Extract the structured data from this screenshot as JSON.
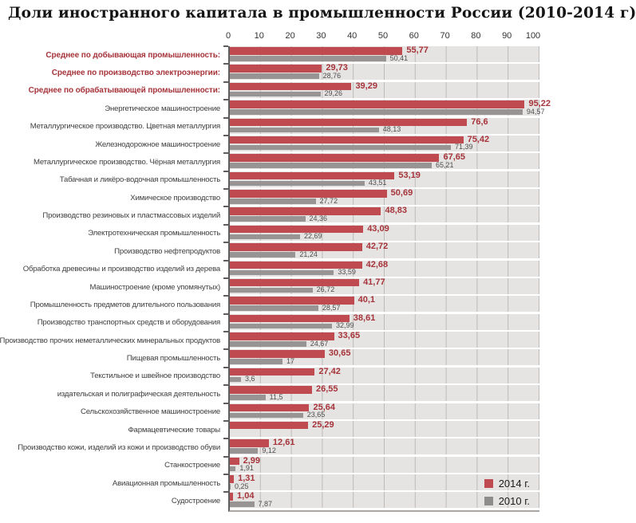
{
  "title": "Доли иностранного капитала в промышленности России (2010-2014 г)",
  "colors": {
    "bar_2014": "#bf4b51",
    "bar_2010": "#989494",
    "value_2014_text": "#a6343a",
    "value_2010_text": "#4e4e4e",
    "summary_label_text": "#a6343a",
    "category_label_text": "#3f3e3e",
    "row_background": "#e6e4e3",
    "gridline": "#bdbab8",
    "axis_line": "#5f5d5d",
    "legend_square_2014": "#bf4b51",
    "legend_square_2010": "#8f8c8c"
  },
  "chart_data": {
    "type": "bar",
    "orientation": "horizontal",
    "title": "Доли иностранного капитала в промышленности России (2010-2014 г)",
    "xlim": [
      0,
      100
    ],
    "x_ticks": [
      "0",
      "10",
      "20",
      "30",
      "40",
      "50",
      "60",
      "70",
      "80",
      "90",
      "100"
    ],
    "grid": true,
    "legend_position": "bottom-right",
    "value_decimal_separator": ",",
    "bold_summary_rows": [
      0,
      1,
      2
    ],
    "categories": [
      "Среднее по добывающая  промышленность:",
      "Среднее по производство электроэнергии:",
      "Среднее по обрабатывающей  промышленности:",
      "Энергетическое машиностроение",
      "Металлургическое производство. Цветная металлургия",
      "Железнодорожное машиностроение",
      "Металлургическое производство. Чёрная металлургия",
      "Табачная и ликёро-водочная промышленность",
      "Химическое производство",
      "Производство резиновых и пластмассовых изделий",
      "Электротехническая промышленность",
      "Производство нефтепродуктов",
      "Обработка древесины и производство изделий из дерева",
      "Машиностроение (кроме упомянутых)",
      "Промышленность предметов длительного пользования",
      "Производство транспортных средств и оборудования",
      "Производство прочих неметаллических минеральных продуктов",
      "Пищевая промышленность",
      "Текстильное и швейное производство",
      "издательская и полиграфическая деятельность",
      "Сельскохозяйственное машиностроение",
      "Фармацевтические товары",
      "Производство кожи, изделий из кожи и производство обуви",
      "Станкостроение",
      "Авиационная промышленность",
      "Судостроение"
    ],
    "series": [
      {
        "name": "2014 г.",
        "color": "#bf4b51",
        "values": [
          55.77,
          29.73,
          39.29,
          95.22,
          76.6,
          75.42,
          67.65,
          53.19,
          50.69,
          48.83,
          43.09,
          42.72,
          42.68,
          41.77,
          40.1,
          38.61,
          33.65,
          30.65,
          27.42,
          26.55,
          25.64,
          25.29,
          12.61,
          2.99,
          1.31,
          1.04
        ]
      },
      {
        "name": "2010 г.",
        "color": "#989494",
        "values": [
          50.41,
          28.76,
          29.26,
          94.57,
          48.13,
          71.39,
          65.21,
          43.51,
          27.72,
          24.36,
          22.69,
          21.24,
          33.59,
          26.72,
          28.57,
          32.99,
          24.67,
          17,
          3.6,
          11.5,
          23.65,
          null,
          9.12,
          1.91,
          0.25,
          7.87
        ]
      }
    ]
  }
}
